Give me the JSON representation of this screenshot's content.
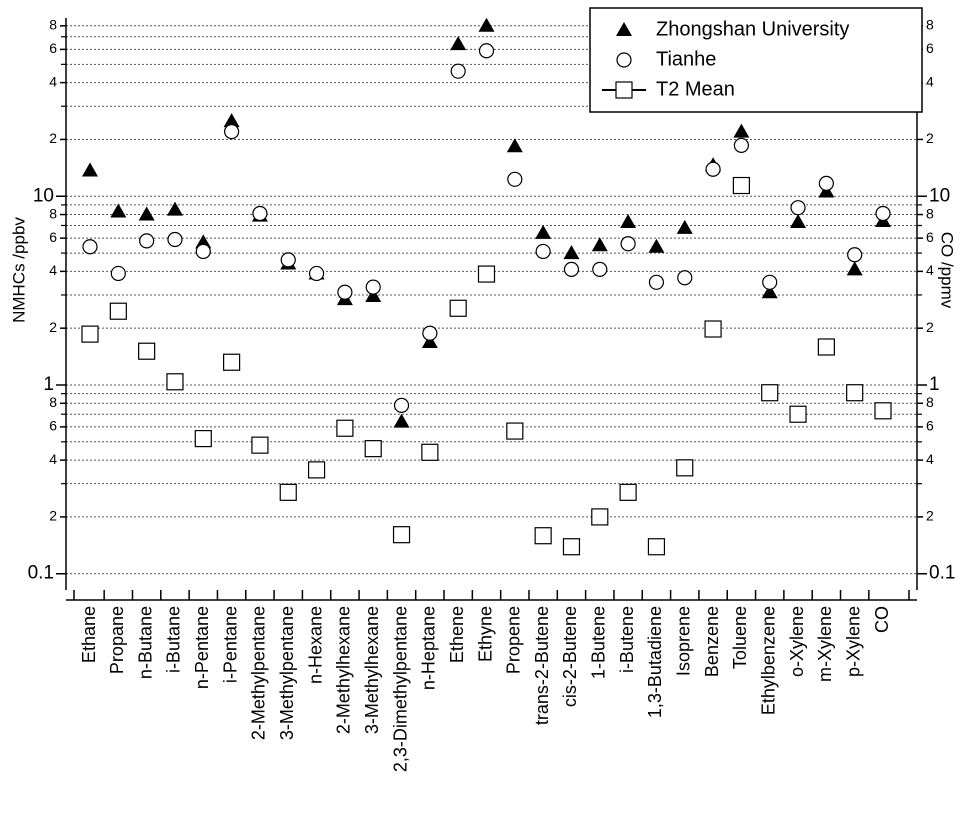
{
  "chart_data": {
    "type": "scatter",
    "y_label": "NMHCs /ppbv",
    "y2_label": "CO /ppmv",
    "log_y": true,
    "grid": true,
    "legend": "top-right",
    "categories": [
      "Ethane",
      "Propane",
      "n-Butane",
      "i-Butane",
      "n-Pentane",
      "i-Pentane",
      "2-Methylpentane",
      "3-Methylpentane",
      "n-Hexane",
      "2-Methylhexane",
      "3-Methylhexane",
      "2,3-Dimethylpentane",
      "n-Heptane",
      "Ethene",
      "Ethyne",
      "Propene",
      "trans-2-Butene",
      "cis-2-Butene",
      "1-Butene",
      "i-Butene",
      "1,3-Butadiene",
      "Isoprene",
      "Benzene",
      "Toluene",
      "Ethylbenzene",
      "o-Xylene",
      "m-Xylene",
      "p-Xylene",
      "CO"
    ],
    "series": [
      {
        "name": "Zhongshan University",
        "color": "#000000",
        "marker": "triangle",
        "line": false,
        "values": [
          13.7,
          8.3,
          8.0,
          8.5,
          5.7,
          25,
          7.9,
          4.4,
          3.9,
          2.85,
          2.96,
          0.64,
          1.69,
          64,
          80,
          18.4,
          6.4,
          5.0,
          5.5,
          7.3,
          5.4,
          6.8,
          14.6,
          22,
          3.1,
          7.3,
          10.6,
          4.1,
          7.4
        ]
      },
      {
        "name": "Tianhe",
        "color": "#000000",
        "marker": "circle",
        "line": false,
        "values": [
          5.4,
          3.9,
          5.8,
          5.9,
          5.1,
          22,
          8.1,
          4.6,
          3.9,
          3.1,
          3.3,
          0.78,
          1.88,
          46,
          59,
          12.3,
          5.1,
          4.1,
          4.1,
          5.6,
          3.5,
          3.7,
          13.9,
          18.6,
          3.5,
          8.7,
          11.7,
          4.9,
          8.1
        ]
      },
      {
        "name": "T2 Mean",
        "color": "#000000",
        "marker": "square",
        "line": true,
        "values": [
          1.86,
          2.46,
          1.51,
          1.04,
          0.52,
          1.32,
          0.48,
          0.27,
          0.355,
          0.59,
          0.46,
          0.161,
          0.44,
          2.55,
          3.87,
          0.57,
          0.159,
          0.139,
          0.2,
          0.27,
          0.139,
          0.364,
          1.98,
          11.4,
          0.91,
          0.7,
          1.59,
          0.91,
          0.73
        ]
      }
    ],
    "ylim": [
      0.082,
      88
    ],
    "yticks": [
      0.1,
      {
        "value": 0.2,
        "label": "2"
      },
      {
        "value": 0.4,
        "label": "4"
      },
      {
        "value": 0.6,
        "label": "6"
      },
      {
        "value": 0.8,
        "label": "8"
      },
      1,
      2,
      4,
      6,
      8,
      10,
      {
        "value": 20,
        "label": "2"
      },
      {
        "value": 40,
        "label": "4"
      },
      {
        "value": 60,
        "label": "6"
      },
      {
        "value": 80,
        "label": "8"
      }
    ],
    "y2lim": [
      0.082,
      88
    ],
    "y2ticks": [
      0.1,
      {
        "value": 0.2,
        "label": "2"
      },
      {
        "value": 0.4,
        "label": "4"
      },
      {
        "value": 0.6,
        "label": "6"
      },
      {
        "value": 0.8,
        "label": "8"
      },
      1,
      2,
      4,
      6,
      8,
      10,
      {
        "value": 20,
        "label": "2"
      },
      {
        "value": 40,
        "label": "4"
      },
      {
        "value": 60,
        "label": "6"
      },
      {
        "value": 80,
        "label": "8"
      }
    ],
    "yminor": [
      0.3,
      0.5,
      0.7,
      0.9,
      3,
      5,
      7,
      9,
      30,
      50,
      70
    ]
  }
}
